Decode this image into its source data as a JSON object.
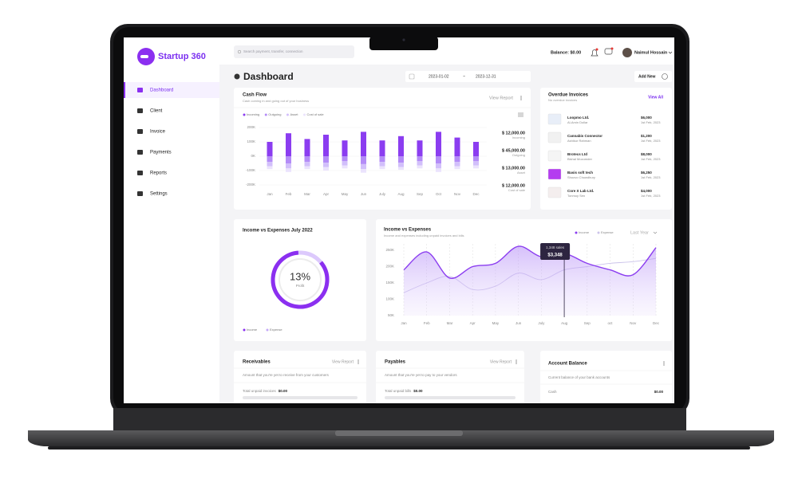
{
  "header": {
    "logo": "Startup 360",
    "search_placeholder": "Search payment, transfer, connection",
    "balance": "Balance: $0.00",
    "user": "Naimul Hossain"
  },
  "sidebar": {
    "items": [
      "Dashboard",
      "Client",
      "Invoice",
      "Payments",
      "Reports",
      "Settings"
    ]
  },
  "toolbar": {
    "title": "Dashboard",
    "date_from": "2023-01-02",
    "date_separator": "~",
    "date_to": "2023-12-31",
    "add_button": "Add New"
  },
  "cash_flow": {
    "subtitle": "Cash coming in and going out of your business",
    "action": "View Report",
    "summary": [
      {
        "amount": "$ 12,000.00",
        "label": "Incoming"
      },
      {
        "amount": "$ 45,000.00",
        "label": "Outgoing"
      },
      {
        "amount": "$ 13,000.00",
        "label": "Asset"
      },
      {
        "amount": "$ 12,000.00",
        "label": "Cost of sale"
      }
    ]
  },
  "overdue_invoices": {
    "title": "Overdue Invoices",
    "subtitle": "No overdue invoices",
    "action": "View All",
    "rows": [
      {
        "company": "Loopmo Ltd.",
        "contact": "Al-Amin Dollar",
        "amount": "$6,000",
        "date": "1st Feb, 2023"
      },
      {
        "company": "Cannabis Connector",
        "contact": "Ashikur Rahman",
        "amount": "$1,200",
        "date": "1st Feb, 2023"
      },
      {
        "company": "Brotecs Ltd",
        "contact": "Bishal Mozumder",
        "amount": "$8,000",
        "date": "1st Feb, 2023"
      },
      {
        "company": "Basis soft tech",
        "contact": "Shoovo Chowdhury",
        "amount": "$6,250",
        "date": "1st Feb, 2023"
      },
      {
        "company": "Core X Lab Ltd.",
        "contact": "Tonmoy Sen",
        "amount": "$4,000",
        "date": "1st Feb, 2023"
      }
    ]
  },
  "profit_card": {
    "title": "Income vs Expenses July 2022",
    "value": "13%",
    "label": "Profit",
    "legend": [
      "Income",
      "Expense"
    ]
  },
  "income_expenses": {
    "subtitle": "Income and expenses including unpaid invoices and bills",
    "period": "Last Year"
  },
  "receivables": {
    "title": "Receivables",
    "action": "View Report",
    "subtitle": "Amount that you're yet to receive from your customers",
    "total_label": "Total unpaid invoices",
    "total": "$0.00"
  },
  "payables": {
    "title": "Payables",
    "action": "View Report",
    "subtitle": "Amount that you're yet to pay to your vendors",
    "total_label": "Total unpaid bills",
    "total": "$0.00"
  },
  "account_balance": {
    "title": "Account Balance",
    "subtitle": "Current balance of your bank accounts",
    "row_label": "Cash",
    "row_value": "$0.00"
  },
  "chart_data": [
    {
      "type": "bar",
      "title": "Cash Flow",
      "stacked": true,
      "grid": true,
      "categories": [
        "Jan",
        "Feb",
        "Mar",
        "Apr",
        "May",
        "Jun",
        "July",
        "Aug",
        "Sep",
        "Oct",
        "Nov",
        "Dec"
      ],
      "series": [
        {
          "name": "Incoming",
          "color": "#8b3df0",
          "values": [
            100000,
            160000,
            120000,
            150000,
            110000,
            170000,
            110000,
            140000,
            110000,
            170000,
            130000,
            100000
          ]
        },
        {
          "name": "Outgoing",
          "color": "#b48cf7",
          "values": [
            -40000,
            -50000,
            -40000,
            -45000,
            -35000,
            -55000,
            -40000,
            -45000,
            -35000,
            -50000,
            -40000,
            -35000
          ]
        },
        {
          "name": "Asset",
          "color": "#d2bffb",
          "values": [
            -30000,
            -35000,
            -30000,
            -30000,
            -30000,
            -35000,
            -30000,
            -30000,
            -30000,
            -35000,
            -30000,
            -30000
          ]
        },
        {
          "name": "Cost of sale",
          "color": "#ebe3fd",
          "values": [
            -20000,
            -25000,
            -20000,
            -25000,
            -20000,
            -25000,
            -20000,
            -20000,
            -20000,
            -25000,
            -20000,
            -20000
          ]
        }
      ],
      "ylim": [
        -200000,
        200000
      ],
      "yticks": [
        {
          "value": 200000,
          "label": "200K"
        },
        {
          "value": 100000,
          "label": "100K"
        },
        {
          "value": 0,
          "label": "0K"
        },
        {
          "value": -100000,
          "label": "-100K"
        },
        {
          "value": -200000,
          "label": "-200K"
        }
      ]
    },
    {
      "type": "line",
      "title": "Income vs Expenses",
      "grid": true,
      "categories": [
        "Jan",
        "Feb",
        "Mar",
        "Apr",
        "May",
        "Jun",
        "July",
        "Aug",
        "Sep",
        "oct",
        "Nov",
        "Dec"
      ],
      "series": [
        {
          "name": "Income",
          "color": "#8b3df0",
          "values": [
            190000,
            245000,
            165000,
            200000,
            210000,
            262000,
            230000,
            240000,
            210000,
            190000,
            175000,
            258000
          ]
        },
        {
          "name": "Expense",
          "color": "#cbc3ea",
          "values": [
            120000,
            150000,
            170000,
            130000,
            140000,
            180000,
            160000,
            190000,
            200000,
            210000,
            215000,
            225000
          ]
        }
      ],
      "ylim": [
        50000,
        250000
      ],
      "yticks": [
        {
          "value": 250000,
          "label": "250K"
        },
        {
          "value": 200000,
          "label": "200K"
        },
        {
          "value": 150000,
          "label": "150K"
        },
        {
          "value": 100000,
          "label": "100K"
        },
        {
          "value": 50000,
          "label": "50K"
        }
      ],
      "annotations": [
        "1,348 sales",
        "$3,348"
      ]
    }
  ]
}
